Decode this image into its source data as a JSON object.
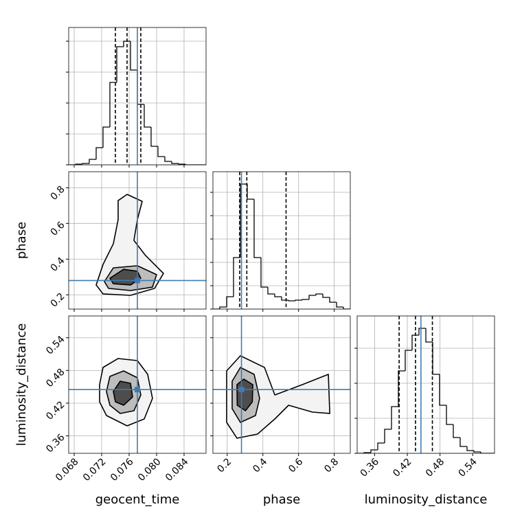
{
  "chart_data": {
    "type": "corner",
    "color": "#000000",
    "truth_color": "#3e7bb5",
    "grid": true,
    "parameters": [
      {
        "name": "geocent_time",
        "lim": [
          0.0672,
          0.0872
        ],
        "ticks": [
          0.068,
          0.072,
          0.076,
          {
            "value": 0.08,
            "label": "0.080"
          },
          0.084
        ],
        "truth": 0.0772,
        "quantiles": [
          0.074,
          0.0757,
          0.0777
        ],
        "hist": {
          "bins": [
            0.0672,
            0.0682,
            0.0692,
            0.0702,
            0.0712,
            0.0722,
            0.0732,
            0.0742,
            0.0752,
            0.0762,
            0.0772,
            0.0782,
            0.0792,
            0.0802,
            0.0812,
            0.0822,
            0.0832,
            0.0842,
            0.0852,
            0.0862,
            0.0872
          ],
          "counts": [
            0,
            1,
            2,
            8,
            25,
            55,
            120,
            172,
            180,
            138,
            88,
            55,
            27,
            12,
            5,
            2,
            1,
            0,
            0,
            0
          ],
          "ylim": [
            0,
            200
          ],
          "yticks": [
            0,
            45,
            90,
            135,
            180
          ]
        }
      },
      {
        "name": "phase",
        "lim": [
          0.12,
          0.89
        ],
        "ticks": [
          0.2,
          0.4,
          0.6,
          0.8
        ],
        "truth": 0.28,
        "quantiles": [
          0.27,
          0.31,
          0.53
        ],
        "hist": {
          "bins": [
            0.12,
            0.1585,
            0.197,
            0.2355,
            0.274,
            0.3125,
            0.351,
            0.3895,
            0.428,
            0.4665,
            0.505,
            0.5435,
            0.582,
            0.6205,
            0.659,
            0.6975,
            0.736,
            0.7745,
            0.813,
            0.8515,
            0.89
          ],
          "counts": [
            0,
            3,
            18,
            75,
            182,
            160,
            75,
            32,
            22,
            18,
            13,
            12,
            13,
            14,
            20,
            22,
            17,
            10,
            3,
            0
          ],
          "ylim": [
            0,
            200
          ],
          "yticks": [
            0,
            34,
            68,
            102,
            136,
            170
          ]
        }
      },
      {
        "name": "luminosity_distance",
        "lim": [
          0.328,
          0.58
        ],
        "ticks": [
          0.36,
          0.42,
          0.48,
          0.54
        ],
        "truth": 0.445,
        "quantiles": [
          0.405,
          0.435,
          0.466
        ],
        "hist": {
          "bins": [
            0.328,
            0.3406,
            0.3532,
            0.3658,
            0.3784,
            0.391,
            0.4036,
            0.4162,
            0.4288,
            0.4414,
            0.454,
            0.4666,
            0.4792,
            0.4918,
            0.5044,
            0.517,
            0.5296,
            0.5422,
            0.5548,
            0.5674,
            0.58
          ],
          "counts": [
            0,
            1,
            5,
            15,
            35,
            68,
            120,
            150,
            172,
            182,
            162,
            115,
            70,
            42,
            23,
            10,
            4,
            2,
            0,
            0
          ],
          "ylim": [
            0,
            200
          ],
          "yticks": [
            0,
            51,
            102,
            153
          ]
        }
      }
    ],
    "pairs": [
      {
        "x": 0,
        "y": 1,
        "contours": [
          {
            "x": [
              0.0712,
              0.0722,
              0.0737,
              0.0744,
              0.0744,
              0.0757,
              0.0779,
              0.0772,
              0.0767,
              0.0784,
              0.081,
              0.0797,
              0.0762,
              0.0722
            ],
            "y": [
              0.255,
              0.37,
              0.486,
              0.621,
              0.728,
              0.763,
              0.724,
              0.621,
              0.505,
              0.42,
              0.32,
              0.236,
              0.197,
              0.205
            ]
          },
          {
            "x": [
              0.0724,
              0.0737,
              0.0772,
              0.08,
              0.0794,
              0.0762,
              0.073
            ],
            "y": [
              0.274,
              0.351,
              0.363,
              0.313,
              0.243,
              0.224,
              0.236
            ]
          },
          {
            "x": [
              0.0732,
              0.0752,
              0.0772,
              0.0777,
              0.0762,
              0.0737
            ],
            "y": [
              0.293,
              0.343,
              0.332,
              0.293,
              0.255,
              0.262
            ]
          }
        ]
      },
      {
        "x": 0,
        "y": 2,
        "contours": [
          {
            "x": [
              0.0717,
              0.0722,
              0.0744,
              0.0772,
              0.0787,
              0.0794,
              0.0782,
              0.0757,
              0.0727,
              0.0717
            ],
            "y": [
              0.454,
              0.4855,
              0.5019,
              0.4981,
              0.4729,
              0.4288,
              0.391,
              0.3784,
              0.3973,
              0.4225
            ]
          },
          {
            "x": [
              0.0727,
              0.0732,
              0.0752,
              0.0772,
              0.0777,
              0.0767,
              0.0747,
              0.0732
            ],
            "y": [
              0.4414,
              0.4691,
              0.4792,
              0.4666,
              0.4351,
              0.4061,
              0.4011,
              0.4162
            ]
          },
          {
            "x": [
              0.0737,
              0.0747,
              0.0762,
              0.0765,
              0.0752,
              0.074
            ],
            "y": [
              0.4414,
              0.4603,
              0.4565,
              0.4313,
              0.4162,
              0.4225
            ]
          }
        ]
      },
      {
        "x": 1,
        "y": 2,
        "contours": [
          {
            "x": [
              0.197,
              0.274,
              0.409,
              0.467,
              0.621,
              0.767,
              0.775,
              0.678,
              0.544,
              0.467,
              0.37,
              0.255,
              0.197
            ],
            "y": [
              0.4792,
              0.5069,
              0.4855,
              0.4351,
              0.454,
              0.4729,
              0.4011,
              0.4036,
              0.4162,
              0.391,
              0.3633,
              0.3557,
              0.3847
            ]
          },
          {
            "x": [
              0.2278,
              0.274,
              0.351,
              0.3818,
              0.3587,
              0.274,
              0.2278
            ],
            "y": [
              0.4603,
              0.4855,
              0.4729,
              0.4288,
              0.3973,
              0.3847,
              0.4099
            ]
          },
          {
            "x": [
              0.2548,
              0.2933,
              0.3433,
              0.341,
              0.3025,
              0.2563
            ],
            "y": [
              0.454,
              0.4641,
              0.454,
              0.4225,
              0.4061,
              0.4162
            ]
          }
        ]
      }
    ]
  }
}
